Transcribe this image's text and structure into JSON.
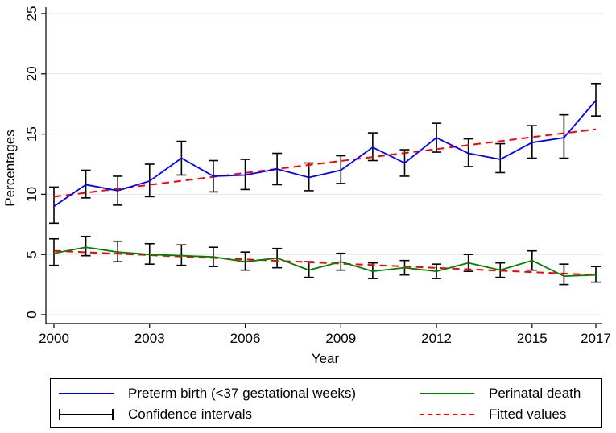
{
  "chart_data": {
    "type": "line",
    "title": "",
    "xlabel": "Year",
    "ylabel": "Percentages",
    "xlim": [
      2000,
      2017
    ],
    "ylim": [
      0,
      25
    ],
    "x_ticks": [
      "2000",
      "2003",
      "2006",
      "2009",
      "2012",
      "2015",
      "2017"
    ],
    "y_ticks": [
      "0",
      "5",
      "10",
      "15",
      "20",
      "25"
    ],
    "x": [
      2000,
      2001,
      2002,
      2003,
      2004,
      2005,
      2006,
      2007,
      2008,
      2009,
      2010,
      2011,
      2012,
      2013,
      2014,
      2015,
      2016,
      2017
    ],
    "series": [
      {
        "name": "Preterm birth (<37 gestational weeks)",
        "color": "#0000ff",
        "values": [
          9.0,
          10.8,
          10.3,
          11.1,
          13.0,
          11.5,
          11.6,
          12.1,
          11.4,
          12.0,
          13.9,
          12.6,
          14.7,
          13.4,
          12.9,
          14.3,
          14.7,
          17.8
        ],
        "ci_low": [
          7.6,
          9.7,
          9.1,
          9.8,
          11.6,
          10.2,
          10.4,
          10.8,
          10.3,
          10.9,
          12.8,
          11.5,
          13.5,
          12.3,
          11.8,
          13.0,
          13.0,
          16.5
        ],
        "ci_high": [
          10.6,
          12.0,
          11.5,
          12.5,
          14.4,
          12.8,
          12.9,
          13.4,
          12.6,
          13.2,
          15.1,
          13.7,
          15.9,
          14.6,
          14.2,
          15.7,
          16.6,
          19.2
        ]
      },
      {
        "name": "Perinatal death",
        "color": "#008000",
        "values": [
          5.1,
          5.6,
          5.2,
          5.0,
          4.9,
          4.8,
          4.4,
          4.7,
          3.7,
          4.4,
          3.6,
          3.9,
          3.6,
          4.3,
          3.7,
          4.5,
          3.2,
          3.3
        ],
        "ci_low": [
          4.1,
          4.9,
          4.4,
          4.2,
          4.1,
          4.0,
          3.7,
          3.9,
          3.1,
          3.7,
          3.0,
          3.3,
          3.0,
          3.6,
          3.1,
          3.7,
          2.5,
          2.7
        ],
        "ci_high": [
          6.3,
          6.5,
          6.1,
          5.9,
          5.8,
          5.6,
          5.2,
          5.5,
          4.4,
          5.1,
          4.3,
          4.5,
          4.2,
          5.0,
          4.3,
          5.3,
          4.2,
          4.0
        ]
      }
    ],
    "fitted": [
      {
        "name": "Fitted values",
        "color": "#ff0000",
        "start": 9.8,
        "end": 15.4
      },
      {
        "name": "Fitted values",
        "color": "#ff0000",
        "start": 5.3,
        "end": 3.3
      }
    ],
    "legend": {
      "position": "bottom",
      "items": [
        {
          "label": "Preterm birth (<37 gestational weeks)",
          "color": "#0000ff",
          "style": "solid"
        },
        {
          "label": "Perinatal death",
          "color": "#008000",
          "style": "solid"
        },
        {
          "label": "Confidence intervals",
          "color": "#000000",
          "style": "capped"
        },
        {
          "label": "Fitted values",
          "color": "#ff0000",
          "style": "dashed"
        }
      ]
    },
    "grid": "horizontal"
  }
}
